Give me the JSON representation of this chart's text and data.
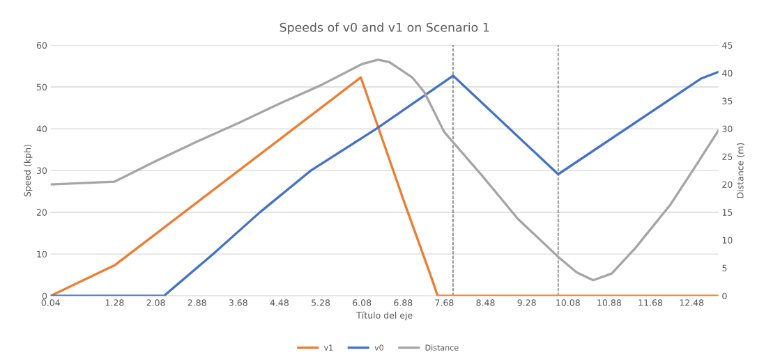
{
  "chart_data": {
    "type": "line",
    "title": "Speeds of v0 and v1 on Scenario 1",
    "xlabel": "Título del eje",
    "ylabel": "Speed (kph)",
    "y2label": "Distance (m)",
    "xlim": [
      0.04,
      13.0
    ],
    "xticks": [
      0.04,
      1.28,
      2.08,
      2.88,
      3.68,
      4.48,
      5.28,
      6.08,
      6.88,
      7.68,
      8.48,
      9.28,
      10.08,
      10.88,
      11.68,
      12.48
    ],
    "ylim": [
      0,
      60
    ],
    "yticks": [
      0,
      10,
      20,
      30,
      40,
      50,
      60
    ],
    "y2lim": [
      0,
      45
    ],
    "y2ticks": [
      0,
      5,
      10,
      15,
      20,
      25,
      30,
      35,
      40,
      45
    ],
    "grid": "y",
    "legend": "bottom",
    "marker": "none",
    "line_style": "solid",
    "series": [
      {
        "name": "v1",
        "color": "#ed7d31",
        "x": [
          0.04,
          1.28,
          6.06,
          6.88,
          7.44,
          7.55,
          13.0
        ],
        "values": [
          0,
          7.3,
          52.3,
          23.2,
          4,
          0,
          0
        ]
      },
      {
        "name": "v0",
        "color": "#4472c4",
        "x": [
          0.04,
          2.24,
          3.19,
          4.1,
          5.09,
          6.36,
          7.85,
          9.89,
          12.66,
          13.0
        ],
        "values": [
          0,
          0,
          10,
          20,
          30,
          40,
          52.7,
          29.1,
          52.0,
          53.6
        ]
      },
      {
        "name": "Distance",
        "color": "#a5a5a5",
        "axis": "y2",
        "x": [
          0.04,
          1.28,
          2.08,
          2.88,
          3.68,
          4.48,
          5.28,
          6.08,
          6.39,
          6.61,
          7.06,
          7.29,
          7.68,
          8.43,
          9.11,
          9.89,
          10.25,
          10.57,
          10.93,
          11.39,
          12.07,
          12.53,
          13.0
        ],
        "values": [
          20.0,
          20.5,
          24.2,
          27.7,
          31.0,
          34.5,
          37.8,
          41.6,
          42.4,
          42.0,
          39.2,
          36.6,
          29.4,
          21.4,
          13.8,
          7.0,
          4.2,
          2.8,
          4.0,
          8.6,
          16.4,
          22.9,
          29.7
        ]
      }
    ],
    "ref_lines": [
      {
        "axis": "x",
        "value": 7.85,
        "color": "#595959",
        "line_style": "dashed"
      },
      {
        "axis": "x",
        "value": 9.89,
        "color": "#595959",
        "line_style": "dashed"
      }
    ]
  }
}
